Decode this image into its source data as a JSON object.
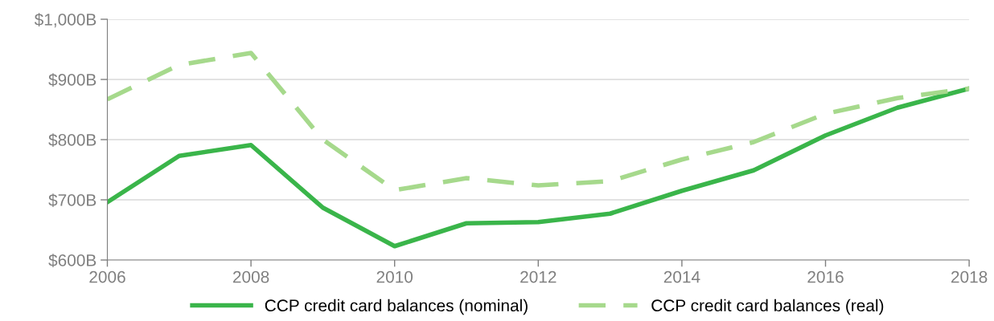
{
  "chart_data": {
    "type": "line",
    "x": [
      2006,
      2007,
      2008,
      2009,
      2010,
      2011,
      2012,
      2013,
      2014,
      2015,
      2016,
      2017,
      2018
    ],
    "series": [
      {
        "name": "CCP credit card balances (nominal)",
        "color": "#3ab54a",
        "line_style": "solid",
        "values": [
          696,
          773,
          791,
          687,
          623,
          661,
          663,
          677,
          715,
          749,
          807,
          853,
          885
        ]
      },
      {
        "name": "CCP credit card balances (real)",
        "color": "#a6d98c",
        "line_style": "dashed",
        "values": [
          867,
          924,
          944,
          800,
          716,
          736,
          724,
          731,
          767,
          796,
          843,
          869,
          885
        ]
      }
    ],
    "xlim": [
      2006,
      2018
    ],
    "xticks": [
      2006,
      2008,
      2010,
      2012,
      2014,
      2016,
      2018
    ],
    "ylim": [
      600,
      1000
    ],
    "yticks": [
      {
        "value": 600,
        "label": "$600B"
      },
      {
        "value": 700,
        "label": "$700B"
      },
      {
        "value": 800,
        "label": "$800B"
      },
      {
        "value": 900,
        "label": "$900B"
      },
      {
        "value": 1000,
        "label": "$1,000B"
      }
    ],
    "grid": "y",
    "legend": "bottom",
    "marker": "none"
  }
}
